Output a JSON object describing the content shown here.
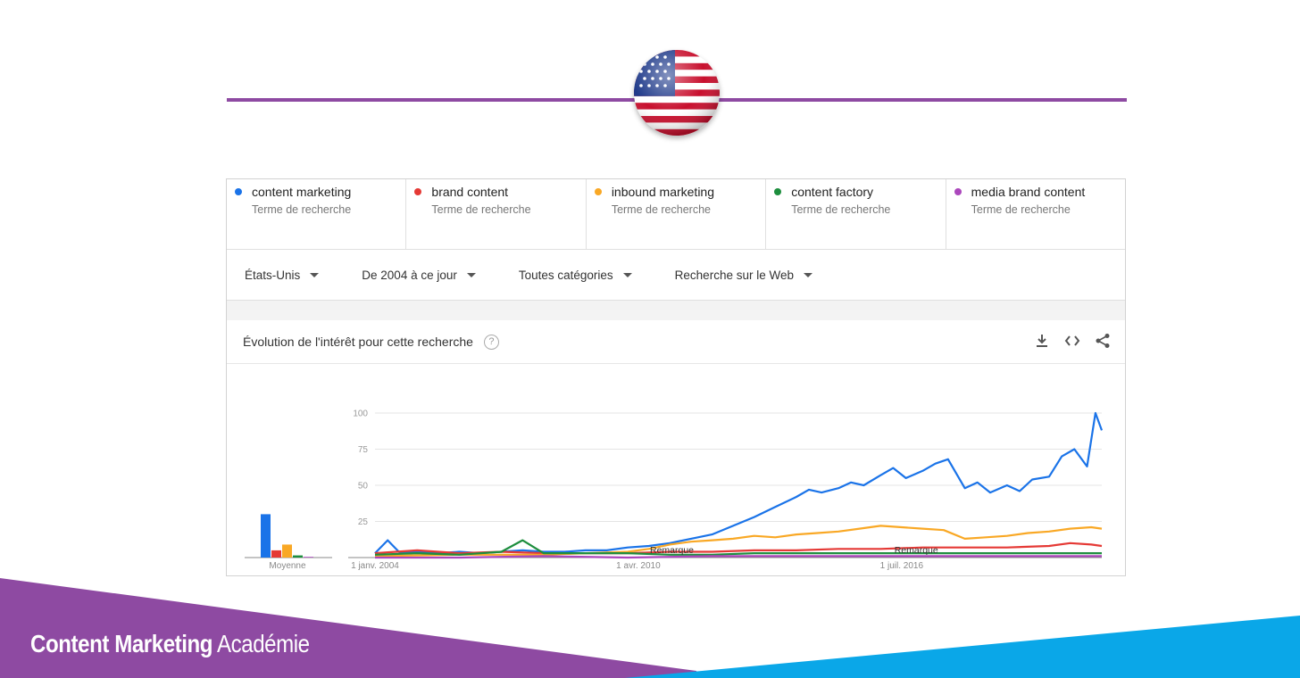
{
  "flag": {
    "icon": "us-flag-ball-icon"
  },
  "colors": {
    "accent_line": "#8e4aa2",
    "banner_purple": "#8e4aa2",
    "banner_blue": "#0aa7e8"
  },
  "terms": [
    {
      "name": "content marketing",
      "sub": "Terme de recherche",
      "color": "#1a73e8"
    },
    {
      "name": "brand content",
      "sub": "Terme de recherche",
      "color": "#e53935"
    },
    {
      "name": "inbound marketing",
      "sub": "Terme de recherche",
      "color": "#f9a825"
    },
    {
      "name": "content factory",
      "sub": "Terme de recherche",
      "color": "#1e8e3e"
    },
    {
      "name": "media brand content",
      "sub": "Terme de recherche",
      "color": "#ab47bc"
    }
  ],
  "filters": {
    "region": "États-Unis",
    "period": "De 2004 à ce jour",
    "category": "Toutes catégories",
    "search_type": "Recherche sur le Web"
  },
  "chart_header": {
    "title": "Évolution de l'intérêt pour cette recherche",
    "help": "?",
    "tools": [
      "download-icon",
      "embed-code-icon",
      "share-icon"
    ]
  },
  "chart_data": {
    "type": "line",
    "x_tick_labels": [
      "1 janv. 2004",
      "1 avr. 2010",
      "1 juil. 2016"
    ],
    "y_ticks": [
      25,
      50,
      75,
      100
    ],
    "ylim": [
      0,
      100
    ],
    "xlim": [
      2004,
      2021.25
    ],
    "annotations": [
      {
        "text": "Remarque",
        "x": 2010.4
      },
      {
        "text": "Remarque",
        "x": 2016.2
      }
    ],
    "average": {
      "label": "Moyenne",
      "values": [
        30,
        5,
        9,
        1.5,
        0.5
      ]
    },
    "series": [
      {
        "name": "content marketing",
        "color": "#1a73e8",
        "x": [
          2004,
          2004.3,
          2004.6,
          2005,
          2005.5,
          2006,
          2006.5,
          2007,
          2007.5,
          2008,
          2008.5,
          2009,
          2009.5,
          2010,
          2010.5,
          2011,
          2011.5,
          2012,
          2012.5,
          2013,
          2013.5,
          2014,
          2014.3,
          2014.6,
          2015,
          2015.3,
          2015.6,
          2016,
          2016.3,
          2016.6,
          2017,
          2017.3,
          2017.6,
          2018,
          2018.3,
          2018.6,
          2019,
          2019.3,
          2019.6,
          2020,
          2020.3,
          2020.6,
          2020.9,
          2021.1,
          2021.25
        ],
        "values": [
          3,
          12,
          3,
          4,
          3,
          4,
          3,
          4,
          5,
          4,
          4,
          5,
          5,
          7,
          8,
          10,
          13,
          16,
          22,
          28,
          35,
          42,
          47,
          45,
          48,
          52,
          50,
          57,
          62,
          55,
          60,
          65,
          68,
          48,
          52,
          45,
          50,
          46,
          54,
          56,
          70,
          75,
          63,
          100,
          88
        ]
      },
      {
        "name": "brand content",
        "color": "#e53935",
        "x": [
          2004,
          2005,
          2006,
          2007,
          2008,
          2009,
          2010,
          2011,
          2012,
          2013,
          2014,
          2015,
          2016,
          2017,
          2018,
          2019,
          2020,
          2020.5,
          2021,
          2021.25
        ],
        "values": [
          3,
          5,
          3,
          4,
          3,
          3,
          3,
          4,
          4,
          5,
          5,
          6,
          6,
          7,
          7,
          7,
          8,
          10,
          9,
          8
        ]
      },
      {
        "name": "inbound marketing",
        "color": "#f9a825",
        "x": [
          2004,
          2006,
          2008,
          2009,
          2010,
          2010.5,
          2011,
          2011.5,
          2012,
          2012.5,
          2013,
          2013.5,
          2014,
          2014.5,
          2015,
          2015.5,
          2016,
          2016.5,
          2017,
          2017.5,
          2018,
          2018.5,
          2019,
          2019.5,
          2020,
          2020.5,
          2021,
          2021.25
        ],
        "values": [
          1,
          2,
          2,
          3,
          4,
          6,
          9,
          11,
          12,
          13,
          15,
          14,
          16,
          17,
          18,
          20,
          22,
          21,
          20,
          19,
          13,
          14,
          15,
          17,
          18,
          20,
          21,
          20
        ]
      },
      {
        "name": "content factory",
        "color": "#1e8e3e",
        "x": [
          2004,
          2005,
          2006,
          2007,
          2007.5,
          2008,
          2009,
          2010,
          2011,
          2012,
          2013,
          2014,
          2015,
          2016,
          2017,
          2018,
          2019,
          2020,
          2021,
          2021.25
        ],
        "values": [
          2,
          3,
          2,
          4,
          12,
          3,
          3,
          3,
          2,
          2,
          3,
          3,
          3,
          3,
          3,
          3,
          3,
          3,
          3,
          3
        ]
      },
      {
        "name": "media brand content",
        "color": "#ab47bc",
        "x": [
          2004,
          2006,
          2008,
          2010,
          2012,
          2014,
          2016,
          2018,
          2020,
          2021.25
        ],
        "values": [
          0,
          0,
          1,
          0,
          1,
          1,
          1,
          1,
          1,
          1
        ]
      }
    ]
  },
  "brand": {
    "strong": "Content Marketing",
    "light": "Académie"
  }
}
